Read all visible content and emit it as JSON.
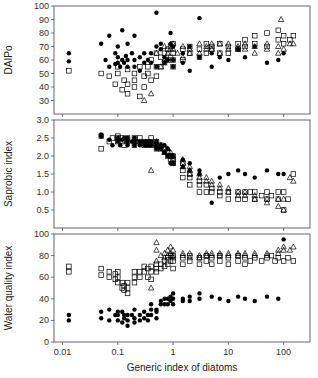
{
  "chart_data": [
    {
      "type": "scatter",
      "ylabel": "DAIPo",
      "log": "x",
      "tick_labels": "y",
      "xlim": [
        0.007,
        300
      ],
      "xticks": [
        0.01,
        0.1,
        1,
        10,
        100
      ],
      "ylim": [
        20,
        100
      ],
      "yticks": [
        30,
        40,
        50,
        60,
        70,
        80,
        90,
        100
      ],
      "series": [
        {
          "color": "black",
          "marker": "circle",
          "x": [
            0.013,
            0.013,
            0.05,
            0.06,
            0.07,
            0.07,
            0.09,
            0.09,
            0.1,
            0.1,
            0.1,
            0.11,
            0.12,
            0.12,
            0.13,
            0.14,
            0.15,
            0.15,
            0.15,
            0.18,
            0.2,
            0.2,
            0.2,
            0.25,
            0.25,
            0.3,
            0.3,
            0.35,
            0.4,
            0.4,
            0.5,
            0.5,
            0.5,
            0.6,
            0.6,
            0.7,
            0.7,
            0.8,
            0.9,
            0.9,
            1.0,
            1.0,
            1.0,
            1.5,
            1.5,
            2.0,
            2.0,
            3.0,
            3.0,
            5.0,
            5.0,
            7.0,
            10.0,
            15.0,
            20.0,
            30.0,
            50.0,
            80.0,
            100.0
          ],
          "values": [
            65,
            59,
            72,
            60,
            55,
            78,
            65,
            57,
            62,
            58,
            70,
            55,
            60,
            82,
            58,
            63,
            72,
            60,
            55,
            65,
            60,
            78,
            55,
            52,
            62,
            58,
            65,
            60,
            65,
            58,
            70,
            55,
            95,
            68,
            72,
            62,
            58,
            60,
            72,
            80,
            60,
            70,
            55,
            65,
            58,
            70,
            52,
            62,
            91,
            65,
            55,
            62,
            60,
            68,
            62,
            70,
            58,
            60,
            65
          ]
        },
        {
          "color": "black",
          "marker": "square-open",
          "x": [
            0.013,
            0.05,
            0.07,
            0.09,
            0.1,
            0.1,
            0.12,
            0.13,
            0.15,
            0.15,
            0.15,
            0.2,
            0.2,
            0.2,
            0.25,
            0.25,
            0.3,
            0.3,
            0.35,
            0.35,
            0.4,
            0.4,
            0.5,
            0.5,
            0.5,
            0.6,
            0.6,
            0.7,
            0.7,
            0.8,
            0.8,
            0.9,
            0.9,
            1.0,
            1.0,
            1.0,
            1.0,
            1.5,
            1.5,
            2.0,
            2.0,
            3.0,
            3.0,
            4.0,
            4.0,
            5.0,
            5.0,
            7.0,
            7.0,
            10.0,
            10.0,
            15.0,
            15.0,
            20.0,
            20.0,
            30.0,
            30.0,
            50.0,
            50.0,
            80.0,
            80.0,
            100.0,
            100.0,
            130.0,
            150.0
          ],
          "values": [
            52,
            50,
            48,
            42,
            55,
            50,
            38,
            45,
            53,
            35,
            42,
            50,
            45,
            40,
            33,
            55,
            48,
            40,
            55,
            50,
            60,
            45,
            55,
            65,
            48,
            55,
            62,
            58,
            65,
            60,
            68,
            62,
            70,
            60,
            55,
            65,
            72,
            68,
            60,
            65,
            70,
            68,
            62,
            72,
            65,
            70,
            68,
            72,
            65,
            70,
            65,
            72,
            68,
            70,
            75,
            72,
            78,
            70,
            80,
            75,
            82,
            78,
            72,
            75,
            78
          ]
        },
        {
          "color": "black",
          "marker": "triangle-open",
          "x": [
            0.3,
            0.4,
            0.5,
            0.6,
            0.7,
            0.7,
            0.8,
            0.9,
            1.0,
            1.0,
            1.2,
            1.5,
            1.5,
            2.0,
            2.0,
            3.0,
            3.0,
            4.0,
            4.0,
            5.0,
            5.0,
            7.0,
            7.0,
            10.0,
            10.0,
            15.0,
            15.0,
            20.0,
            20.0,
            30.0,
            30.0,
            50.0,
            50.0,
            80.0,
            80.0,
            90.0,
            100.0,
            130.0,
            150.0
          ],
          "values": [
            30,
            35,
            65,
            55,
            60,
            70,
            65,
            68,
            72,
            68,
            65,
            70,
            62,
            68,
            65,
            72,
            65,
            70,
            68,
            72,
            68,
            65,
            72,
            68,
            72,
            70,
            68,
            72,
            68,
            70,
            65,
            72,
            68,
            70,
            65,
            90,
            68,
            72,
            72
          ]
        }
      ]
    },
    {
      "type": "scatter",
      "ylabel": "Saprobic index",
      "log": "x",
      "tick_labels": "y",
      "xlim": [
        0.007,
        300
      ],
      "xticks": [
        0.01,
        0.1,
        1,
        10,
        100
      ],
      "ylim": [
        0.0,
        3.0
      ],
      "yticks": [
        0.5,
        {
          "value": 1.0,
          "label": "1.0"
        },
        1.5,
        {
          "value": 2.0,
          "label": "2.0"
        },
        2.5,
        {
          "value": 3.0,
          "label": "3.0"
        }
      ],
      "series": [
        {
          "color": "black",
          "marker": "circle",
          "x": [
            0.05,
            0.05,
            0.07,
            0.08,
            0.1,
            0.1,
            0.11,
            0.12,
            0.13,
            0.15,
            0.15,
            0.15,
            0.18,
            0.2,
            0.2,
            0.2,
            0.25,
            0.25,
            0.3,
            0.3,
            0.35,
            0.35,
            0.4,
            0.4,
            0.5,
            0.5,
            0.5,
            0.6,
            0.6,
            0.7,
            0.7,
            0.8,
            0.8,
            0.9,
            0.9,
            1.0,
            1.0,
            1.5,
            1.5,
            2.0,
            2.0,
            3.0,
            3.0,
            5.0,
            7.0,
            10.0,
            15.0,
            20.0,
            30.0,
            50.0,
            80.0,
            100.0
          ],
          "values": [
            2.55,
            2.6,
            2.45,
            2.3,
            2.5,
            2.4,
            2.3,
            2.45,
            2.5,
            2.4,
            2.5,
            2.3,
            2.4,
            2.5,
            2.4,
            2.3,
            2.4,
            2.3,
            2.4,
            2.3,
            2.3,
            2.4,
            2.4,
            2.3,
            2.3,
            2.2,
            2.4,
            2.2,
            2.3,
            2.1,
            2.3,
            2.0,
            2.2,
            2.0,
            1.8,
            2.0,
            1.8,
            1.9,
            1.7,
            1.6,
            1.8,
            1.5,
            1.6,
            0.7,
            1.4,
            1.5,
            1.6,
            1.5,
            1.4,
            1.6,
            1.5,
            1.5
          ]
        },
        {
          "color": "black",
          "marker": "square-open",
          "x": [
            0.05,
            0.05,
            0.07,
            0.08,
            0.1,
            0.1,
            0.1,
            0.12,
            0.12,
            0.13,
            0.15,
            0.15,
            0.2,
            0.2,
            0.2,
            0.25,
            0.25,
            0.3,
            0.3,
            0.35,
            0.35,
            0.4,
            0.4,
            0.4,
            0.5,
            0.5,
            0.5,
            0.6,
            0.6,
            0.7,
            0.7,
            0.8,
            0.8,
            0.9,
            0.9,
            1.0,
            1.0,
            1.0,
            1.5,
            1.5,
            1.5,
            2.0,
            2.0,
            2.0,
            3.0,
            3.0,
            3.0,
            4.0,
            4.0,
            5.0,
            5.0,
            7.0,
            7.0,
            10.0,
            10.0,
            15.0,
            15.0,
            20.0,
            20.0,
            25.0,
            30.0,
            30.0,
            40.0,
            50.0,
            50.0,
            60.0,
            80.0,
            80.0,
            100.0,
            100.0,
            120.0,
            150.0
          ],
          "values": [
            2.55,
            2.2,
            2.4,
            2.5,
            2.4,
            2.5,
            2.55,
            2.5,
            2.4,
            2.3,
            2.5,
            2.4,
            2.5,
            2.4,
            2.3,
            2.4,
            2.5,
            2.4,
            2.3,
            2.4,
            2.3,
            2.3,
            2.4,
            2.5,
            2.3,
            2.4,
            2.2,
            2.2,
            2.3,
            2.1,
            2.2,
            2.0,
            2.1,
            1.9,
            2.0,
            1.9,
            2.0,
            1.8,
            1.8,
            1.6,
            1.4,
            1.5,
            1.4,
            1.2,
            1.3,
            1.2,
            1.0,
            1.2,
            1.0,
            1.1,
            1.0,
            1.0,
            0.9,
            1.0,
            0.8,
            1.0,
            0.8,
            1.0,
            0.8,
            1.0,
            1.0,
            0.8,
            0.9,
            1.0,
            0.8,
            0.9,
            0.8,
            1.0,
            0.5,
            1.0,
            0.8,
            1.5
          ]
        },
        {
          "color": "black",
          "marker": "triangle-open",
          "x": [
            0.4,
            0.5,
            0.5,
            0.6,
            0.7,
            0.7,
            0.8,
            0.9,
            0.9,
            1.0,
            1.0,
            1.0,
            1.5,
            1.5,
            1.5,
            2.0,
            2.0,
            2.0,
            3.0,
            3.0,
            4.0,
            4.0,
            5.0,
            5.0,
            7.0,
            7.0,
            10.0,
            10.0,
            15.0,
            15.0,
            20.0,
            20.0,
            30.0,
            30.0,
            50.0,
            50.0,
            80.0,
            80.0,
            100.0,
            100.0,
            130.0,
            150.0
          ],
          "values": [
            1.6,
            2.4,
            2.3,
            2.3,
            2.2,
            2.1,
            2.2,
            2.1,
            2.0,
            2.0,
            1.9,
            1.8,
            1.9,
            1.8,
            1.7,
            1.7,
            1.6,
            1.5,
            1.5,
            1.4,
            1.4,
            1.3,
            1.3,
            1.2,
            1.2,
            1.1,
            1.1,
            1.0,
            1.0,
            0.9,
            1.0,
            0.9,
            0.9,
            0.8,
            0.8,
            0.7,
            0.8,
            0.6,
            0.8,
            0.5,
            1.4,
            1.3
          ]
        }
      ]
    },
    {
      "type": "scatter",
      "ylabel": "Water quality index",
      "xlabel": "Generic index of diatoms",
      "log": "x",
      "xlim": [
        0.007,
        300
      ],
      "xticks": [
        0.01,
        0.1,
        1,
        10,
        100
      ],
      "ylim": [
        0,
        100
      ],
      "yticks": [
        0,
        20,
        40,
        60,
        80,
        100
      ],
      "series": [
        {
          "color": "black",
          "marker": "circle",
          "x": [
            0.013,
            0.013,
            0.05,
            0.05,
            0.07,
            0.07,
            0.09,
            0.1,
            0.1,
            0.1,
            0.12,
            0.12,
            0.13,
            0.13,
            0.15,
            0.15,
            0.15,
            0.18,
            0.2,
            0.2,
            0.2,
            0.25,
            0.25,
            0.3,
            0.3,
            0.35,
            0.35,
            0.4,
            0.4,
            0.4,
            0.5,
            0.5,
            0.5,
            0.6,
            0.6,
            0.7,
            0.7,
            0.8,
            0.8,
            0.9,
            0.9,
            1.0,
            1.0,
            1.0,
            1.5,
            1.5,
            2.0,
            2.0,
            3.0,
            3.0,
            5.0,
            7.0,
            10.0,
            15.0,
            20.0,
            30.0,
            50.0,
            80.0,
            100.0
          ],
          "values": [
            25,
            20,
            22,
            28,
            20,
            30,
            25,
            20,
            25,
            28,
            18,
            28,
            22,
            25,
            15,
            25,
            20,
            25,
            30,
            22,
            18,
            25,
            20,
            22,
            28,
            20,
            25,
            35,
            25,
            30,
            30,
            22,
            28,
            35,
            38,
            35,
            40,
            40,
            35,
            42,
            38,
            40,
            35,
            45,
            40,
            38,
            42,
            38,
            40,
            45,
            42,
            40,
            38,
            42,
            40,
            38,
            42,
            40,
            95
          ]
        },
        {
          "color": "black",
          "marker": "square-open",
          "x": [
            0.013,
            0.013,
            0.05,
            0.05,
            0.07,
            0.07,
            0.09,
            0.09,
            0.1,
            0.1,
            0.1,
            0.12,
            0.12,
            0.13,
            0.13,
            0.15,
            0.15,
            0.15,
            0.2,
            0.2,
            0.2,
            0.25,
            0.25,
            0.3,
            0.3,
            0.35,
            0.35,
            0.4,
            0.4,
            0.4,
            0.5,
            0.5,
            0.5,
            0.6,
            0.6,
            0.7,
            0.7,
            0.8,
            0.8,
            0.9,
            0.9,
            1.0,
            1.0,
            1.0,
            1.5,
            1.5,
            2.0,
            2.0,
            3.0,
            3.0,
            4.0,
            4.0,
            5.0,
            5.0,
            7.0,
            7.0,
            10.0,
            10.0,
            15.0,
            15.0,
            20.0,
            20.0,
            25.0,
            30.0,
            40.0,
            50.0,
            60.0,
            70.0,
            80.0,
            100.0,
            120.0,
            150.0
          ],
          "values": [
            65,
            70,
            62,
            68,
            60,
            65,
            58,
            63,
            55,
            60,
            65,
            50,
            55,
            48,
            52,
            45,
            50,
            55,
            55,
            60,
            65,
            60,
            65,
            65,
            70,
            60,
            68,
            58,
            65,
            70,
            65,
            72,
            68,
            68,
            72,
            70,
            75,
            72,
            78,
            75,
            80,
            75,
            80,
            68,
            78,
            72,
            75,
            80,
            78,
            72,
            75,
            80,
            78,
            72,
            75,
            80,
            78,
            72,
            75,
            80,
            78,
            72,
            75,
            78,
            75,
            78,
            80,
            75,
            78,
            75,
            78,
            75
          ]
        },
        {
          "color": "black",
          "marker": "triangle-open",
          "x": [
            0.4,
            0.5,
            0.5,
            0.5,
            0.6,
            0.7,
            0.7,
            0.8,
            0.8,
            0.9,
            0.9,
            1.0,
            1.0,
            1.0,
            1.5,
            1.5,
            2.0,
            2.0,
            3.0,
            3.0,
            4.0,
            4.0,
            5.0,
            5.0,
            7.0,
            7.0,
            10.0,
            10.0,
            15.0,
            15.0,
            20.0,
            20.0,
            30.0,
            30.0,
            50.0,
            50.0,
            80.0,
            80.0,
            100.0,
            100.0,
            130.0,
            150.0
          ],
          "values": [
            50,
            75,
            85,
            92,
            80,
            82,
            78,
            80,
            85,
            82,
            88,
            80,
            85,
            78,
            82,
            80,
            82,
            78,
            80,
            78,
            82,
            80,
            80,
            82,
            82,
            80,
            80,
            82,
            82,
            80,
            80,
            82,
            82,
            80,
            80,
            82,
            85,
            82,
            85,
            88,
            85,
            88
          ]
        }
      ]
    }
  ]
}
